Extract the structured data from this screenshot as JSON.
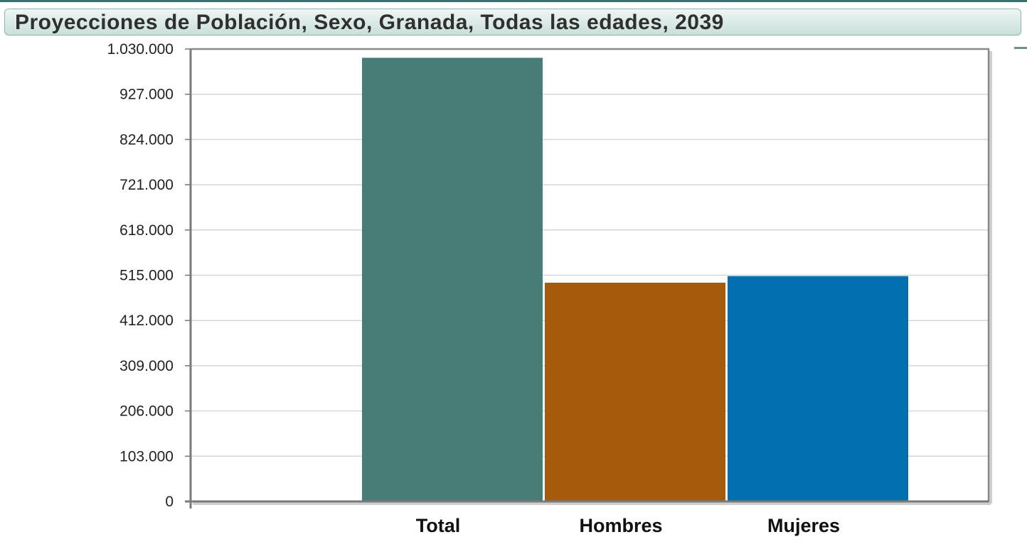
{
  "colors": {
    "accent": "#3e6f6a",
    "plot_border": "#8a8a8a",
    "gridline": "#d6d6d6"
  },
  "chart_data": {
    "type": "bar",
    "title": "Proyecciones de Población, Sexo, Granada, Todas las edades, 2039",
    "xlabel": "",
    "ylabel": "",
    "categories": [
      "Total",
      "Hombres",
      "Mujeres"
    ],
    "values": [
      1010000,
      498000,
      513000
    ],
    "colors": [
      "#477d76",
      "#a55b0b",
      "#0070b0"
    ],
    "ylim": [
      0,
      1030000
    ],
    "yticks": [
      0,
      103000,
      206000,
      309000,
      412000,
      515000,
      618000,
      721000,
      824000,
      927000,
      1030000
    ],
    "ytick_labels": [
      "0",
      "103.000",
      "206.000",
      "309.000",
      "412.000",
      "515.000",
      "618.000",
      "721.000",
      "824.000",
      "927.000",
      "1.030.000"
    ],
    "grid": true,
    "legend": "none"
  }
}
